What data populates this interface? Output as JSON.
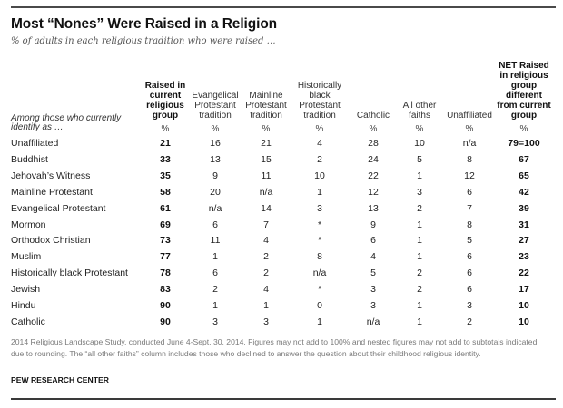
{
  "chart_data": {
    "type": "table",
    "title": "Most “Nones” Were Raised in a Religion",
    "subtitle": "% of adults in each religious tradition who were raised …",
    "row_header": "Among those who currently identify as …",
    "columns": [
      {
        "key": "raised_current",
        "label": "Raised in current religious group",
        "unit": "%",
        "bold": true
      },
      {
        "key": "evangelical",
        "label": "Evangelical Protestant tradition",
        "unit": "%",
        "bold": false
      },
      {
        "key": "mainline",
        "label": "Mainline Protestant tradition",
        "unit": "%",
        "bold": false
      },
      {
        "key": "hist_black",
        "label": "Historically black Protestant tradition",
        "unit": "%",
        "bold": false
      },
      {
        "key": "catholic",
        "label": "Catholic",
        "unit": "%",
        "bold": false
      },
      {
        "key": "other_faiths",
        "label": "All other faiths",
        "unit": "%",
        "bold": false
      },
      {
        "key": "unaffiliated",
        "label": "Unaffiliated",
        "unit": "%",
        "bold": false
      },
      {
        "key": "net_different",
        "label": "NET Raised in religious group different from current group",
        "unit": "%",
        "bold": true
      }
    ],
    "rows": [
      {
        "group": "Unaffiliated",
        "values": [
          "21",
          "16",
          "21",
          "4",
          "28",
          "10",
          "n/a",
          "79=100"
        ]
      },
      {
        "group": "Buddhist",
        "values": [
          "33",
          "13",
          "15",
          "2",
          "24",
          "5",
          "8",
          "67"
        ]
      },
      {
        "group": "Jehovah’s Witness",
        "values": [
          "35",
          "9",
          "11",
          "10",
          "22",
          "1",
          "12",
          "65"
        ]
      },
      {
        "group": "Mainline Protestant",
        "values": [
          "58",
          "20",
          "n/a",
          "1",
          "12",
          "3",
          "6",
          "42"
        ]
      },
      {
        "group": "Evangelical Protestant",
        "values": [
          "61",
          "n/a",
          "14",
          "3",
          "13",
          "2",
          "7",
          "39"
        ]
      },
      {
        "group": "Mormon",
        "values": [
          "69",
          "6",
          "7",
          "*",
          "9",
          "1",
          "8",
          "31"
        ]
      },
      {
        "group": "Orthodox Christian",
        "values": [
          "73",
          "11",
          "4",
          "*",
          "6",
          "1",
          "5",
          "27"
        ]
      },
      {
        "group": "Muslim",
        "values": [
          "77",
          "1",
          "2",
          "8",
          "4",
          "1",
          "6",
          "23"
        ]
      },
      {
        "group": "Historically black Protestant",
        "values": [
          "78",
          "6",
          "2",
          "n/a",
          "5",
          "2",
          "6",
          "22"
        ]
      },
      {
        "group": "Jewish",
        "values": [
          "83",
          "2",
          "4",
          "*",
          "3",
          "2",
          "6",
          "17"
        ]
      },
      {
        "group": "Hindu",
        "values": [
          "90",
          "1",
          "1",
          "0",
          "3",
          "1",
          "3",
          "10"
        ]
      },
      {
        "group": "Catholic",
        "values": [
          "90",
          "3",
          "3",
          "1",
          "n/a",
          "1",
          "2",
          "10"
        ]
      }
    ]
  },
  "header": {
    "title": "Most “Nones” Were Raised in a Religion",
    "subtitle": "% of adults in each religious tradition who were raised …",
    "row_header_line1": "Among those who currently",
    "row_header_line2": "identify as …",
    "col_headers": [
      [
        "Raised in",
        "current",
        "religious",
        "group"
      ],
      [
        "Evangelical",
        "Protestant",
        "tradition"
      ],
      [
        "Mainline",
        "Protestant",
        "tradition"
      ],
      [
        "Historically",
        "black",
        "Protestant",
        "tradition"
      ],
      [
        "Catholic"
      ],
      [
        "All other",
        "faiths"
      ],
      [
        "Unaffiliated"
      ],
      [
        "NET Raised",
        "in religious",
        "group",
        "different",
        "from current",
        "group"
      ]
    ],
    "pct_symbol": "%"
  },
  "footer": {
    "note": "2014 Religious Landscape Study, conducted June 4-Sept. 30, 2014. Figures may not add to 100% and nested figures may not add to subtotals indicated due to rounding. The “all other faiths” column includes those who declined to answer the question about their childhood religious identity.",
    "source": "PEW RESEARCH CENTER"
  },
  "colors": {
    "rule": "#4a4a4a",
    "text": "#1a1a1a",
    "muted": "#7a7a7a"
  }
}
